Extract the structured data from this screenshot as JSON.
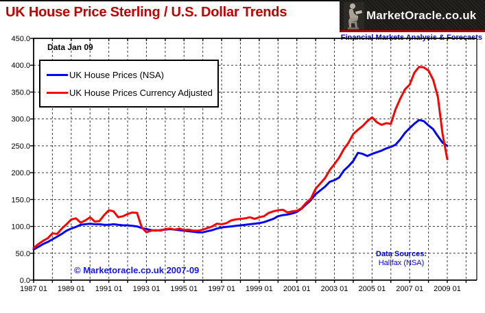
{
  "header": {
    "title": "UK House Price Sterling / U.S. Dollar Trends",
    "logo_text": "MarketOracle.co.uk",
    "tagline": "Financial Markets Analysis & Forecasts"
  },
  "annotations": {
    "data_label": "Data Jan 09",
    "copyright": "© Marketoracle.co.uk 2007-09",
    "sources_title": "Data Sources:",
    "sources_value": "Halifax (NSA)"
  },
  "legend": {
    "items": [
      {
        "label": "UK House Prices (NSA)",
        "color": "#0000ff"
      },
      {
        "label": "UK House Prices Currency Adjusted",
        "color": "#ff0000"
      }
    ]
  },
  "colors": {
    "title_red": "#c40000",
    "series_blue": "#0000ff",
    "series_red": "#ff0000",
    "annotation_blue": "#1414ff",
    "grid": "#3a3a3a",
    "axis": "#000000",
    "logo_bg": "#1b1917",
    "logo_strip": "#b00000"
  },
  "chart_data": {
    "type": "line",
    "title": "UK House Price Sterling / U.S. Dollar Trends",
    "x_start": "1987-01",
    "x_step_months": 3,
    "x_year_range": [
      1987,
      2010
    ],
    "x_tick_labels": [
      "1987 01",
      "1989 01",
      "1991 01",
      "1993 01",
      "1995 01",
      "1997 01",
      "1999 01",
      "2001 01",
      "2003 01",
      "2005 01",
      "2007 01",
      "2009 01"
    ],
    "y_tick_labels": [
      "0.0",
      "50.0",
      "100.0",
      "150.0",
      "200.0",
      "250.0",
      "300.0",
      "350.0",
      "400.0",
      "450.0"
    ],
    "ylim": [
      0,
      450
    ],
    "y_tick_step": 50,
    "grid": true,
    "legend_position": "top-left",
    "series": [
      {
        "name": "UK House Prices (NSA)",
        "color": "#0000ff",
        "values": [
          57,
          62,
          67,
          71,
          76,
          81,
          86,
          92,
          96,
          99,
          103,
          104,
          105,
          104,
          104,
          103,
          103,
          104,
          103,
          102,
          102,
          101,
          100,
          97,
          95,
          93,
          92,
          93,
          94,
          95,
          94,
          93,
          92,
          91,
          90,
          89,
          89,
          91,
          93,
          96,
          98,
          99,
          100,
          101,
          102,
          103,
          104,
          105,
          106,
          108,
          111,
          114,
          119,
          121,
          122,
          124,
          127,
          133,
          141,
          149,
          160,
          167,
          174,
          183,
          186,
          191,
          204,
          212,
          222,
          237,
          235,
          231,
          235,
          238,
          241,
          245,
          248,
          252,
          262,
          274,
          283,
          291,
          298,
          296,
          288,
          281,
          268,
          256,
          250
        ]
      },
      {
        "name": "UK House Prices Currency Adjusted",
        "color": "#ff0000",
        "values": [
          60,
          67,
          73,
          78,
          87,
          86,
          96,
          104,
          113,
          115,
          107,
          111,
          117,
          109,
          110,
          121,
          130,
          128,
          117,
          119,
          123,
          126,
          125,
          98,
          89,
          92,
          93,
          92,
          95,
          96,
          94,
          96,
          93,
          94,
          92,
          92,
          94,
          97,
          100,
          105,
          104,
          106,
          111,
          113,
          114,
          115,
          117,
          114,
          117,
          119,
          125,
          128,
          130,
          131,
          126,
          128,
          129,
          134,
          144,
          152,
          170,
          180,
          190,
          205,
          216,
          228,
          244,
          256,
          272,
          280,
          287,
          296,
          303,
          294,
          289,
          292,
          291,
          318,
          338,
          355,
          364,
          386,
          397,
          396,
          390,
          373,
          341,
          272,
          225
        ]
      }
    ]
  }
}
